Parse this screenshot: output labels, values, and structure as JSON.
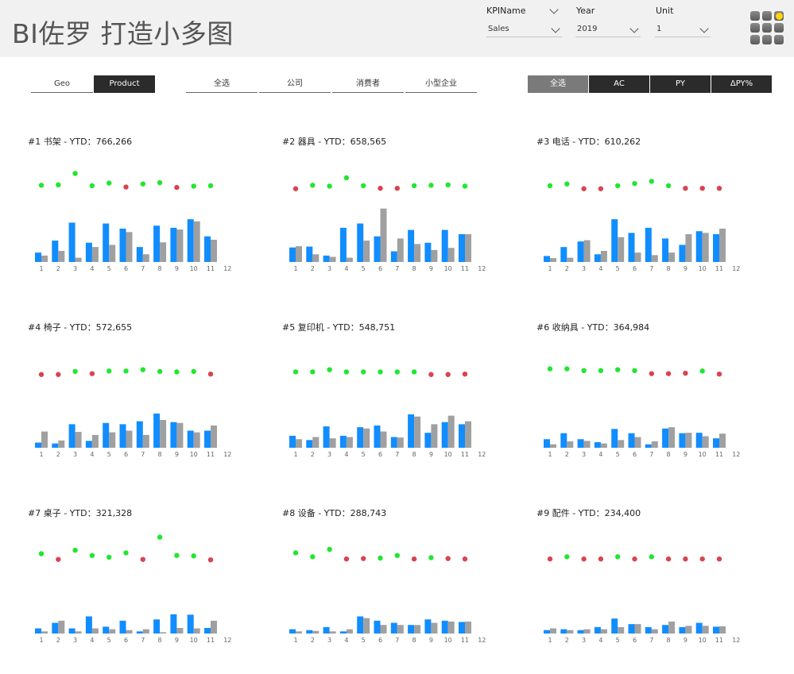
{
  "title": "BI佐罗 打造小多图",
  "slicers": [
    {
      "label": "KPIName",
      "value": "Sales"
    },
    {
      "label": "Year",
      "value": "2019"
    },
    {
      "label": "Unit",
      "value": "1"
    }
  ],
  "dimension_tabs": [
    {
      "label": "Geo",
      "active": false
    },
    {
      "label": "Product",
      "active": true
    }
  ],
  "segment_tabs": [
    {
      "label": "全选"
    },
    {
      "label": "公司"
    },
    {
      "label": "消费者"
    },
    {
      "label": "小型企业"
    }
  ],
  "measure_tabs": [
    {
      "label": "全选",
      "selected": true
    },
    {
      "label": "AC",
      "selected": false
    },
    {
      "label": "PY",
      "selected": false
    },
    {
      "label": "ΔPY%",
      "selected": false
    }
  ],
  "colors": {
    "ac": "#118dff",
    "py": "#a0a0a0",
    "positive": "#21e630",
    "negative": "#d64550"
  },
  "panels": [
    {
      "title": "#1 书架 - YTD：766,266"
    },
    {
      "title": "#2 器具 - YTD：658,565"
    },
    {
      "title": "#3 电话 - YTD：610,262"
    },
    {
      "title": "#4 椅子 - YTD：572,655"
    },
    {
      "title": "#5 复印机 - YTD：548,751"
    },
    {
      "title": "#6 收纳具 - YTD：364,984"
    },
    {
      "title": "#7 桌子 - YTD：321,328"
    },
    {
      "title": "#8 设备 - YTD：288,743"
    },
    {
      "title": "#9 配件 - YTD：234,400"
    }
  ],
  "chart_data": [
    {
      "type": "bar",
      "title": "#1 书架 - YTD：766,266",
      "categories": [
        "1",
        "2",
        "3",
        "4",
        "5",
        "6",
        "7",
        "8",
        "9",
        "10",
        "11",
        "12"
      ],
      "series": [
        {
          "values": [
            22,
            50,
            92,
            45,
            90,
            78,
            35,
            85,
            80,
            100,
            60,
            null
          ]
        },
        {
          "values": [
            15,
            26,
            10,
            35,
            40,
            70,
            18,
            46,
            76,
            95,
            52,
            null
          ]
        }
      ],
      "delta": [
        3,
        4,
        30,
        2,
        8,
        -1,
        6,
        9,
        -2,
        1,
        2,
        null
      ]
    },
    {
      "type": "bar",
      "title": "#2 器具 - YTD：658,565",
      "categories": [
        "1",
        "2",
        "3",
        "4",
        "5",
        "6",
        "7",
        "8",
        "9",
        "10",
        "11",
        "12"
      ],
      "series": [
        {
          "values": [
            34,
            36,
            15,
            80,
            90,
            60,
            25,
            75,
            45,
            75,
            65,
            null
          ]
        },
        {
          "values": [
            37,
            18,
            12,
            10,
            50,
            125,
            55,
            42,
            28,
            33,
            65,
            null
          ]
        }
      ],
      "delta": [
        -5,
        3,
        1,
        20,
        2,
        -4,
        -4,
        2,
        3,
        4,
        1,
        null
      ]
    },
    {
      "type": "bar",
      "title": "#3 电话 - YTD：610,262",
      "categories": [
        "1",
        "2",
        "3",
        "4",
        "5",
        "6",
        "7",
        "8",
        "9",
        "10",
        "11",
        "12"
      ],
      "series": [
        {
          "values": [
            14,
            35,
            48,
            18,
            100,
            68,
            80,
            55,
            40,
            72,
            65,
            null
          ]
        },
        {
          "values": [
            9,
            10,
            51,
            26,
            58,
            22,
            16,
            22,
            65,
            68,
            78,
            null
          ]
        }
      ],
      "delta": [
        2,
        6,
        -5,
        -5,
        2,
        7,
        12,
        2,
        -4,
        -4,
        -4,
        null
      ]
    },
    {
      "type": "bar",
      "title": "#4 椅子 - YTD：572,655",
      "categories": [
        "1",
        "2",
        "3",
        "4",
        "5",
        "6",
        "7",
        "8",
        "9",
        "10",
        "11",
        "12"
      ],
      "series": [
        {
          "values": [
            12,
            10,
            55,
            16,
            58,
            55,
            62,
            80,
            60,
            40,
            40,
            null
          ]
        },
        {
          "values": [
            38,
            17,
            37,
            30,
            36,
            40,
            30,
            65,
            58,
            36,
            52,
            null
          ]
        }
      ],
      "delta": [
        -5,
        -5,
        2,
        -3,
        3,
        3,
        6,
        2,
        1,
        2,
        -4,
        null
      ]
    },
    {
      "type": "bar",
      "title": "#5 复印机 - YTD：548,751",
      "categories": [
        "1",
        "2",
        "3",
        "4",
        "5",
        "6",
        "7",
        "8",
        "9",
        "10",
        "11",
        "12"
      ],
      "series": [
        {
          "values": [
            28,
            18,
            50,
            28,
            48,
            52,
            25,
            78,
            35,
            60,
            55,
            null
          ]
        },
        {
          "values": [
            20,
            25,
            22,
            25,
            45,
            38,
            24,
            73,
            55,
            75,
            62,
            null
          ]
        }
      ],
      "delta": [
        1,
        1,
        6,
        1,
        1,
        1,
        1,
        1,
        -5,
        -5,
        -4,
        null
      ]
    },
    {
      "type": "bar",
      "title": "#6 收纳具 - YTD：364,984",
      "categories": [
        "1",
        "2",
        "3",
        "4",
        "5",
        "6",
        "7",
        "8",
        "9",
        "10",
        "11",
        "12"
      ],
      "series": [
        {
          "values": [
            20,
            34,
            20,
            13,
            44,
            34,
            8,
            45,
            34,
            35,
            22,
            null
          ]
        },
        {
          "values": [
            8,
            15,
            16,
            10,
            18,
            25,
            15,
            48,
            35,
            27,
            33,
            null
          ]
        }
      ],
      "delta": [
        8,
        8,
        4,
        4,
        6,
        4,
        -3,
        -3,
        -2,
        3,
        -4,
        null
      ]
    },
    {
      "type": "bar",
      "title": "#7 桌子 - YTD：321,328",
      "categories": [
        "1",
        "2",
        "3",
        "4",
        "5",
        "6",
        "7",
        "8",
        "9",
        "10",
        "11",
        "12"
      ],
      "series": [
        {
          "values": [
            12,
            25,
            12,
            40,
            16,
            30,
            5,
            33,
            45,
            44,
            13,
            null
          ]
        },
        {
          "values": [
            5,
            30,
            5,
            12,
            10,
            8,
            10,
            3,
            13,
            12,
            30,
            null
          ]
        }
      ],
      "delta": [
        10,
        -3,
        18,
        6,
        2,
        12,
        -3,
        48,
        6,
        5,
        -4,
        null
      ]
    },
    {
      "type": "bar",
      "title": "#8 设备 - YTD：288,743",
      "categories": [
        "1",
        "2",
        "3",
        "4",
        "5",
        "6",
        "7",
        "8",
        "9",
        "10",
        "11",
        "12"
      ],
      "series": [
        {
          "values": [
            10,
            8,
            15,
            5,
            40,
            30,
            25,
            20,
            33,
            30,
            27,
            null
          ]
        },
        {
          "values": [
            5,
            6,
            5,
            10,
            36,
            20,
            20,
            20,
            25,
            28,
            28,
            null
          ]
        }
      ],
      "delta": [
        12,
        3,
        20,
        -2,
        -1,
        0,
        6,
        -2,
        1,
        -1,
        -2,
        null
      ]
    },
    {
      "type": "bar",
      "title": "#9 配件 - YTD：234,400",
      "categories": [
        "1",
        "2",
        "3",
        "4",
        "5",
        "6",
        "7",
        "8",
        "9",
        "10",
        "11",
        "12"
      ],
      "series": [
        {
          "values": [
            8,
            10,
            8,
            15,
            35,
            22,
            15,
            20,
            15,
            25,
            16,
            null
          ]
        },
        {
          "values": [
            12,
            8,
            10,
            10,
            15,
            22,
            10,
            28,
            18,
            18,
            17,
            null
          ]
        }
      ],
      "delta": [
        -2,
        3,
        -2,
        -2,
        3,
        -2,
        3,
        -2,
        -2,
        -2,
        -2,
        null
      ]
    }
  ]
}
